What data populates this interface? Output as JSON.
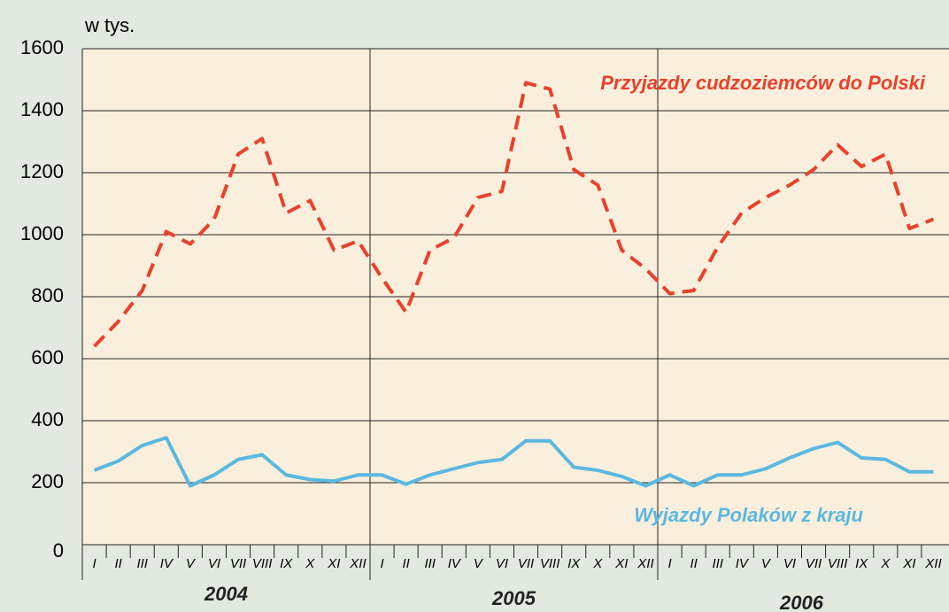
{
  "chart_data": {
    "type": "line",
    "ylabel": "w tys.",
    "categories": [
      "I",
      "II",
      "III",
      "IV",
      "V",
      "VI",
      "VII",
      "VIII",
      "IX",
      "X",
      "XI",
      "XII",
      "I",
      "II",
      "III",
      "IV",
      "V",
      "VI",
      "VII",
      "VIII",
      "IX",
      "X",
      "XI",
      "XII",
      "I",
      "II",
      "III",
      "IV",
      "V",
      "VI",
      "VII",
      "VIII",
      "IX",
      "X",
      "XI",
      "XII"
    ],
    "groups": [
      "2004",
      "2005",
      "2006"
    ],
    "series": [
      {
        "name": "Przyjazdy cudzoziemców do Polski",
        "color": "#e8412c",
        "style": "dashed",
        "values": [
          640,
          720,
          820,
          1010,
          970,
          1050,
          1260,
          1310,
          1070,
          1110,
          950,
          980,
          860,
          750,
          950,
          990,
          1120,
          1140,
          1490,
          1470,
          1210,
          1160,
          950,
          890,
          810,
          820,
          960,
          1070,
          1120,
          1160,
          1210,
          1290,
          1220,
          1260,
          1020,
          1050
        ]
      },
      {
        "name": "Wyjazdy Polaków z kraju",
        "color": "#5bb8e0",
        "style": "solid",
        "values": [
          240,
          270,
          320,
          345,
          190,
          225,
          275,
          290,
          225,
          210,
          205,
          225,
          225,
          195,
          225,
          245,
          265,
          275,
          335,
          335,
          250,
          240,
          220,
          190,
          225,
          190,
          225,
          225,
          245,
          280,
          310,
          330,
          280,
          275,
          235,
          235
        ]
      }
    ],
    "ylim": [
      0,
      1600
    ],
    "yticks": [
      0,
      200,
      400,
      600,
      800,
      1000,
      1200,
      1400,
      1600
    ],
    "grid": true
  }
}
